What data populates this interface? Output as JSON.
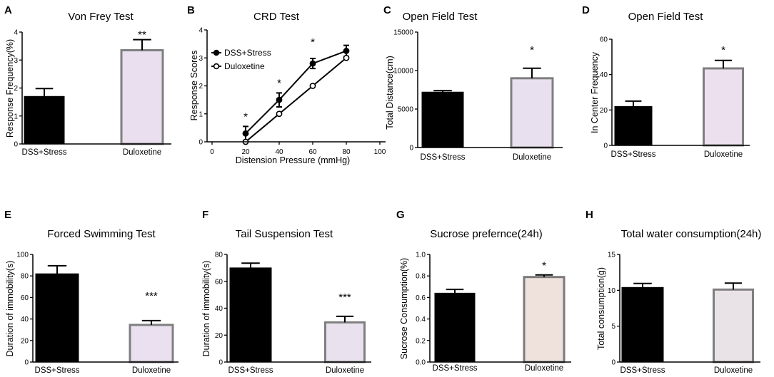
{
  "chart_data": [
    {
      "panel": "A",
      "type": "bar",
      "title": "Von Frey Test",
      "ylabel": "Response Frequency(%)",
      "categories": [
        "DSS+Stress",
        "Duloxetine"
      ],
      "values": [
        1.7,
        3.35
      ],
      "errors": [
        0.28,
        0.38
      ],
      "ylim": [
        0,
        4
      ],
      "yticks": [
        0,
        1,
        2,
        3,
        4
      ],
      "ytick_labels": [
        "0",
        "1",
        "2",
        "3",
        "4"
      ],
      "annotations": [
        {
          "category": "Duloxetine",
          "text": "**"
        }
      ],
      "colors": [
        "#000000",
        "#e9dfee"
      ],
      "edge_colors": [
        "#000000",
        "#7f7f7f"
      ]
    },
    {
      "panel": "B",
      "type": "line",
      "title": "CRD Test",
      "ylabel": "Response Scores",
      "xlabel": "Distension Pressure (mmHg)",
      "x": [
        20,
        40,
        60,
        80
      ],
      "xlim": [
        0,
        100
      ],
      "xticks": [
        0,
        20,
        40,
        60,
        80,
        100
      ],
      "xtick_labels": [
        "0",
        "20",
        "40",
        "60",
        "80",
        "100"
      ],
      "ylim": [
        0,
        4
      ],
      "yticks": [
        0,
        1,
        2,
        3,
        4
      ],
      "ytick_labels": [
        "0",
        "1",
        "2",
        "3",
        "4"
      ],
      "series": [
        {
          "name": "DSS+Stress",
          "values": [
            0.3,
            1.5,
            2.8,
            3.25
          ],
          "errors": [
            0.25,
            0.25,
            0.18,
            0.2
          ],
          "marker_fill": "#000000"
        },
        {
          "name": "Duloxetine",
          "values": [
            0.0,
            1.0,
            2.0,
            3.0
          ],
          "errors": [
            0,
            0,
            0,
            0
          ],
          "marker_fill": "#ffffff"
        }
      ],
      "legend": "top-left",
      "annotations": [
        {
          "x": 20,
          "text": "*"
        },
        {
          "x": 40,
          "text": "*"
        },
        {
          "x": 60,
          "text": "*"
        }
      ]
    },
    {
      "panel": "C",
      "type": "bar",
      "title": "Open Field Test",
      "ylabel": "Total Distance(cm)",
      "categories": [
        "DSS+Stress",
        "Duloxetine"
      ],
      "values": [
        7200,
        9000
      ],
      "errors": [
        200,
        1300
      ],
      "ylim": [
        0,
        15000
      ],
      "yticks": [
        0,
        5000,
        10000,
        15000
      ],
      "ytick_labels": [
        "0",
        "5000",
        "10000",
        "15000"
      ],
      "annotations": [
        {
          "category": "Duloxetine",
          "text": "*"
        }
      ],
      "colors": [
        "#000000",
        "#e9e0ef"
      ],
      "edge_colors": [
        "#000000",
        "#7f7f7f"
      ]
    },
    {
      "panel": "D",
      "type": "bar",
      "title": "Open Field Test",
      "ylabel": "In Center Frequency",
      "categories": [
        "DSS+Stress",
        "Duloxetine"
      ],
      "values": [
        22,
        43.5
      ],
      "errors": [
        3,
        4.5
      ],
      "ylim": [
        0,
        60
      ],
      "yticks": [
        0,
        20,
        40,
        60
      ],
      "ytick_labels": [
        "0",
        "20",
        "40",
        "60"
      ],
      "annotations": [
        {
          "category": "Duloxetine",
          "text": "*"
        }
      ],
      "colors": [
        "#000000",
        "#ece0ee"
      ],
      "edge_colors": [
        "#000000",
        "#7f7f7f"
      ]
    },
    {
      "panel": "E",
      "type": "bar",
      "title": "Forced Swimming Test",
      "ylabel": "Duration of immobility(s)",
      "categories": [
        "DSS+Stress",
        "Duloxetine"
      ],
      "values": [
        82,
        34.5
      ],
      "errors": [
        7.5,
        4
      ],
      "ylim": [
        0,
        100
      ],
      "yticks": [
        0,
        20,
        40,
        60,
        80,
        100
      ],
      "ytick_labels": [
        "0",
        "20",
        "40",
        "60",
        "80",
        "100"
      ],
      "annotations": [
        {
          "category": "Duloxetine",
          "text": "***"
        }
      ],
      "colors": [
        "#000000",
        "#ebe0ef"
      ],
      "edge_colors": [
        "#000000",
        "#7f7f7f"
      ]
    },
    {
      "panel": "F",
      "type": "bar",
      "title": "Tail Suspension Test",
      "ylabel": "Duration of immobility(s)",
      "categories": [
        "DSS+Stress",
        "Duloxetine"
      ],
      "values": [
        70,
        29.5
      ],
      "errors": [
        3.5,
        4.5
      ],
      "ylim": [
        0,
        80
      ],
      "yticks": [
        0,
        20,
        40,
        60,
        80
      ],
      "ytick_labels": [
        "0",
        "20",
        "40",
        "60",
        "80"
      ],
      "annotations": [
        {
          "category": "Duloxetine",
          "text": "***"
        }
      ],
      "colors": [
        "#000000",
        "#eae1ee"
      ],
      "edge_colors": [
        "#000000",
        "#7f7f7f"
      ]
    },
    {
      "panel": "G",
      "type": "bar",
      "title": "Sucrose prefernce(24h)",
      "ylabel": "Sucrose Consumption(%)",
      "categories": [
        "DSS+Stress",
        "Duloxetine"
      ],
      "values": [
        0.64,
        0.79
      ],
      "errors": [
        0.035,
        0.02
      ],
      "ylim": [
        0,
        1.0
      ],
      "yticks": [
        0,
        0.2,
        0.4,
        0.6,
        0.8,
        1.0
      ],
      "ytick_labels": [
        "0.0",
        "0.2",
        "0.4",
        "0.6",
        "0.8",
        "1.0"
      ],
      "annotations": [
        {
          "category": "Duloxetine",
          "text": "*"
        }
      ],
      "colors": [
        "#000000",
        "#efe1dc"
      ],
      "edge_colors": [
        "#000000",
        "#7a7a7a"
      ]
    },
    {
      "panel": "H",
      "type": "bar",
      "title": "Total water consumption(24h)",
      "ylabel": "Total consumption(g)",
      "categories": [
        "DSS+Stress",
        "Duloxetine"
      ],
      "values": [
        10.4,
        10.1
      ],
      "errors": [
        0.55,
        0.9
      ],
      "ylim": [
        0,
        15
      ],
      "yticks": [
        0,
        5,
        10,
        15
      ],
      "ytick_labels": [
        "0",
        "5",
        "10",
        "15"
      ],
      "annotations": [],
      "colors": [
        "#000000",
        "#e9e2e7"
      ],
      "edge_colors": [
        "#000000",
        "#7f7f7f"
      ]
    }
  ]
}
